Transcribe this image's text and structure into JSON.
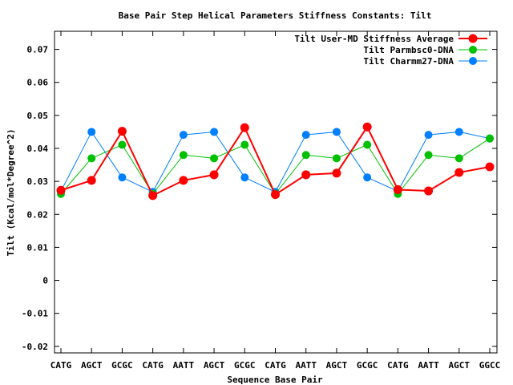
{
  "chart_data": {
    "type": "line",
    "title": "Base Pair Step Helical Parameters Stiffness Constants: Tilt",
    "xlabel": "Sequence Base Pair",
    "ylabel": "Tilt (Kcal/mol*Degree^2)",
    "categories": [
      "CATG",
      "AGCT",
      "GCGC",
      "CATG",
      "AATT",
      "AGCT",
      "GCGC",
      "CATG",
      "AATT",
      "AGCT",
      "GCGC",
      "CATG",
      "AATT",
      "AGCT",
      "GGCC"
    ],
    "ylim": [
      -0.022,
      0.0755
    ],
    "yticks": [
      -0.02,
      -0.01,
      0,
      0.01,
      0.02,
      0.03,
      0.04,
      0.05,
      0.06,
      0.07
    ],
    "ytick_labels": [
      "-0.02",
      "-0.01",
      "0",
      "0.01",
      "0.02",
      "0.03",
      "0.04",
      "0.05",
      "0.06",
      "0.07"
    ],
    "grid": false,
    "legend_position": "top-right",
    "series": [
      {
        "name": "Tilt User-MD Stiffness Average",
        "color": "#ff0000",
        "values": [
          0.0273,
          0.0303,
          0.0452,
          0.0257,
          0.0303,
          0.032,
          0.0463,
          0.026,
          0.032,
          0.0325,
          0.0465,
          0.0275,
          0.0271,
          0.0327,
          0.0344
        ]
      },
      {
        "name": "Tilt Parmbsc0-DNA",
        "color": "#00c000",
        "values": [
          0.0262,
          0.037,
          0.0411,
          0.0262,
          0.038,
          0.037,
          0.0411,
          0.0262,
          0.038,
          0.037,
          0.0411,
          0.0262,
          0.038,
          0.037,
          0.043
        ]
      },
      {
        "name": "Tilt Charmm27-DNA",
        "color": "#0080ff",
        "values": [
          0.027,
          0.045,
          0.0312,
          0.0268,
          0.0441,
          0.045,
          0.0312,
          0.0268,
          0.0441,
          0.045,
          0.0312,
          0.027,
          0.0441,
          0.045,
          0.043
        ]
      }
    ]
  }
}
